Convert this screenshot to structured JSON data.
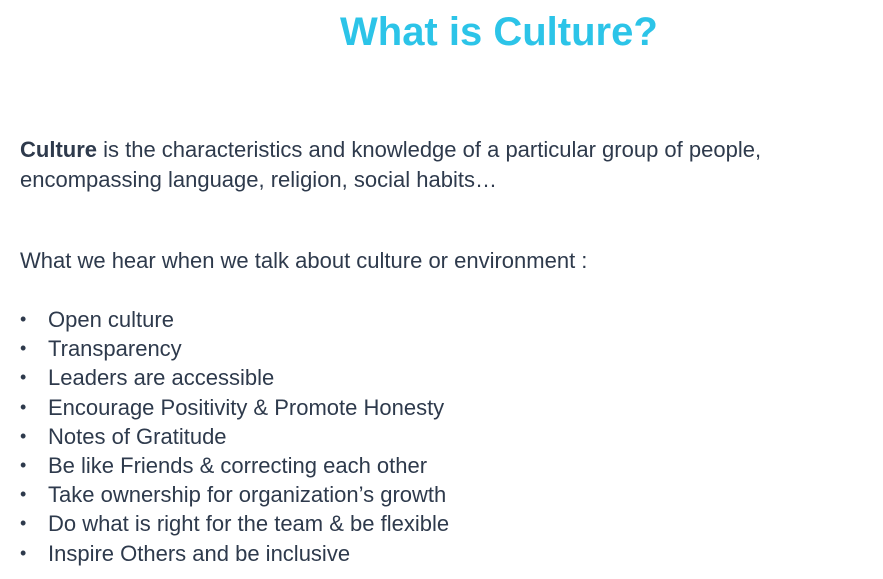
{
  "title": "What is Culture?",
  "definition": {
    "term": "Culture",
    "line1_rest": " is the characteristics and knowledge of a particular group of people,",
    "line2": "encompassing language, religion, social habits…"
  },
  "intro": "What we hear when we talk about culture or environment :",
  "bullet_glyph": "•",
  "bullets": [
    "Open culture",
    "Transparency",
    "Leaders are accessible",
    "Encourage Positivity & Promote Honesty",
    "Notes of Gratitude",
    "Be like Friends & correcting each other",
    "Take ownership for organization’s growth",
    "Do what is right for the team & be flexible",
    "Inspire Others and be inclusive"
  ],
  "colors": {
    "title": "#2cc4e8",
    "text": "#2e3a4c",
    "background": "#ffffff"
  }
}
